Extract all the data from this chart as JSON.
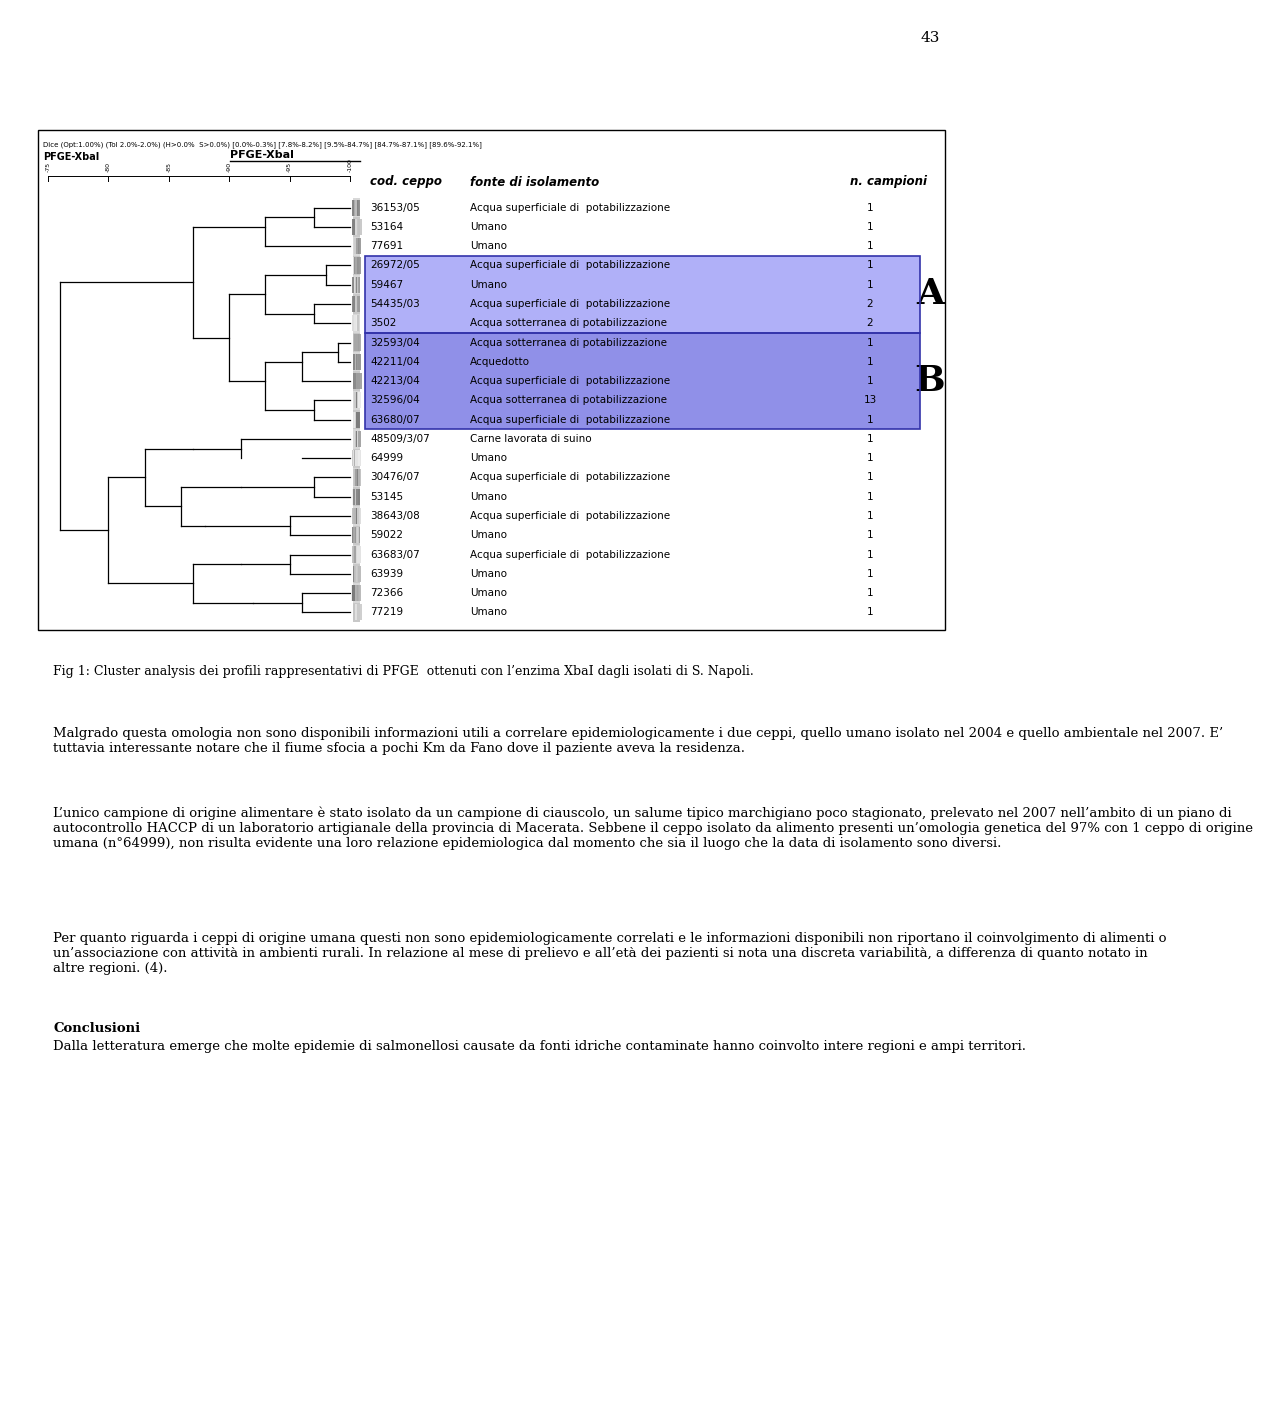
{
  "page_number": "43",
  "box_header_left": "Dice (Opt:1.00%) (Tol 2.0%-2.0%) (H>0.0%  S>0.0%) [0.0%-0.3%] [7.8%-8.2%] [9.5%-84.7%] [84.7%-87.1%] [89.6%-92.1%]",
  "box_label_left": "PFGE-Xbal",
  "box_label_center": "PFGE-Xbal",
  "col_headers": [
    "cod. ceppo",
    "fonte di isolamento",
    "n. campioni"
  ],
  "rows": [
    {
      "code": "36153/05",
      "source": "Acqua superficiale di  potabilizzazione",
      "n": "1",
      "cluster": "none"
    },
    {
      "code": "53164",
      "source": "Umano",
      "n": "1",
      "cluster": "none"
    },
    {
      "code": "77691",
      "source": "Umano",
      "n": "1",
      "cluster": "none"
    },
    {
      "code": "26972/05",
      "source": "Acqua superficiale di  potabilizzazione",
      "n": "1",
      "cluster": "A"
    },
    {
      "code": "59467",
      "source": "Umano",
      "n": "1",
      "cluster": "A"
    },
    {
      "code": "54435/03",
      "source": "Acqua superficiale di  potabilizzazione",
      "n": "2",
      "cluster": "A"
    },
    {
      "code": "3502",
      "source": "Acqua sotterranea di potabilizzazione",
      "n": "2",
      "cluster": "A"
    },
    {
      "code": "32593/04",
      "source": "Acqua sotterranea di potabilizzazione",
      "n": "1",
      "cluster": "B"
    },
    {
      "code": "42211/04",
      "source": "Acquedotto",
      "n": "1",
      "cluster": "B"
    },
    {
      "code": "42213/04",
      "source": "Acqua superficiale di  potabilizzazione",
      "n": "1",
      "cluster": "B"
    },
    {
      "code": "32596/04",
      "source": "Acqua sotterranea di potabilizzazione",
      "n": "13",
      "cluster": "B"
    },
    {
      "code": "63680/07",
      "source": "Acqua superficiale di  potabilizzazione",
      "n": "1",
      "cluster": "B"
    },
    {
      "code": "48509/3/07",
      "source": "Carne lavorata di suino",
      "n": "1",
      "cluster": "none"
    },
    {
      "code": "64999",
      "source": "Umano",
      "n": "1",
      "cluster": "none"
    },
    {
      "code": "30476/07",
      "source": "Acqua superficiale di  potabilizzazione",
      "n": "1",
      "cluster": "none"
    },
    {
      "code": "53145",
      "source": "Umano",
      "n": "1",
      "cluster": "none"
    },
    {
      "code": "38643/08",
      "source": "Acqua superficiale di  potabilizzazione",
      "n": "1",
      "cluster": "none"
    },
    {
      "code": "59022",
      "source": "Umano",
      "n": "1",
      "cluster": "none"
    },
    {
      "code": "63683/07",
      "source": "Acqua superficiale di  potabilizzazione",
      "n": "1",
      "cluster": "none"
    },
    {
      "code": "63939",
      "source": "Umano",
      "n": "1",
      "cluster": "none"
    },
    {
      "code": "72366",
      "source": "Umano",
      "n": "1",
      "cluster": "none"
    },
    {
      "code": "77219",
      "source": "Umano",
      "n": "1",
      "cluster": "none"
    }
  ],
  "cluster_A_rows": [
    3,
    4,
    5,
    6
  ],
  "cluster_B_rows": [
    7,
    8,
    9,
    10,
    11
  ],
  "cluster_A_label": "A",
  "cluster_B_label": "B",
  "cluster_color_A": "#b0b0f8",
  "cluster_color_B": "#9090e8",
  "fig_caption_bold": "Fig 1: Cluster analysis dei profili rappresentativi di PFGE  ottenuti con l’enzima XbaI dagli isolati di S. Napoli.",
  "para1": "Malgrado questa omologia non sono disponibili informazioni utili a correlare epidemiologicamente i due ceppi, quello umano isolato nel 2004 e quello ambientale nel 2007. E’ tuttavia interessante notare che il fiume sfocia a pochi Km da Fano dove il paziente aveva la residenza.",
  "para2": "L’unico campione di origine alimentare è stato isolato da un campione di ciauscolo, un salume tipico marchigiano poco stagionato, prelevato nel 2007 nell’ambito di un piano di autocontrollo HACCP di un laboratorio artigianale della provincia di Macerata. Sebbene il ceppo isolato da alimento presenti un’omologia genetica del 97% con 1 ceppo di origine umana (n°64999), non risulta evidente una loro relazione epidemiologica dal momento che sia il luogo che la data di isolamento sono diversi.",
  "para3": "Per quanto riguarda i ceppi di origine umana questi non sono epidemiologicamente correlati e le informazioni disponibili non riportano il coinvolgimento di alimenti o un’associazione con attività in ambienti rurali. In relazione al mese di prelievo e all’età dei pazienti si nota una discreta variabilità, a differenza di quanto notato in altre regioni. (4).",
  "section_title": "Conclusioni",
  "para4": "Dalla letteratura emerge che molte epidemie di salmonellosi causate da fonti idriche contaminate hanno coinvolto intere regioni e ampi territori.",
  "scale_pcts": [
    75,
    80,
    85,
    90,
    95,
    100
  ],
  "scale_labels": [
    "-75",
    "-80",
    "-85",
    "-90",
    "-95",
    "-100"
  ]
}
